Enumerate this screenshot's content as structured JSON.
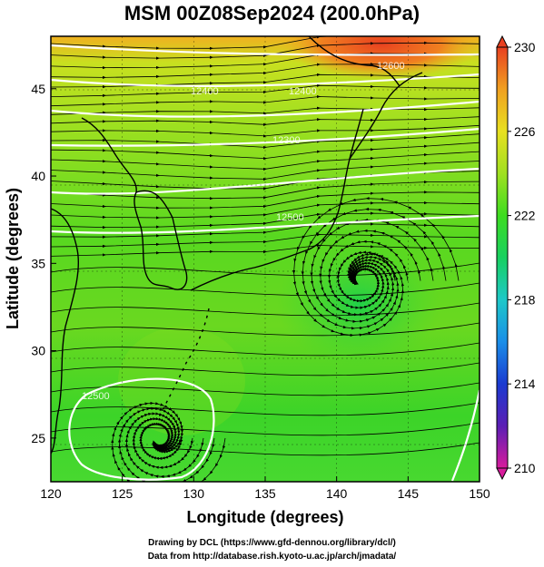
{
  "title": "MSM 00Z08Sep2024 (200.0hPa)",
  "map": {
    "x_axis_label": "Longitude (degrees)",
    "y_axis_label": "Latitude  (degrees)",
    "lon_range": [
      120,
      150
    ],
    "lat_range": [
      22.5,
      48
    ],
    "lon_ticks": [
      "120",
      "125",
      "130",
      "135",
      "140",
      "145",
      "150"
    ],
    "lat_ticks": [
      "25",
      "30",
      "35",
      "40",
      "45"
    ],
    "field": "temperature (colour shading), geopotential height contours (white), wind streamlines (black)",
    "contour_labels": [
      "12500",
      "12400",
      "12300",
      "12600"
    ],
    "features": [
      "cyclonic circulation near 142E 34N",
      "anticyclonic circulation near 127E 25N"
    ]
  },
  "colorbar": {
    "ticks": [
      "230",
      "226",
      "222",
      "218",
      "214",
      "210"
    ],
    "min": 210,
    "max": 230,
    "colors": [
      "#d81c9c",
      "#5b1eb4",
      "#1a3ad0",
      "#1a8ee8",
      "#1ec8c8",
      "#18d060",
      "#3ddc20",
      "#a0e020",
      "#e8e020",
      "#f0a020",
      "#e84020"
    ]
  },
  "credits": {
    "line1": "Drawing by DCL (https://www.gfd-dennou.org/library/dcl/)",
    "line2": "Data from http://database.rish.kyoto-u.ac.jp/arch/jmadata/"
  }
}
